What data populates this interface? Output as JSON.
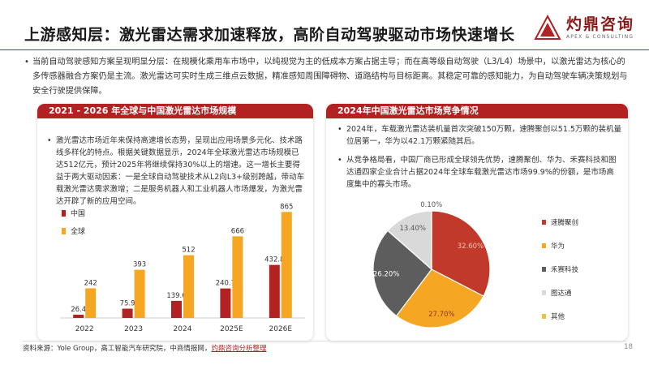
{
  "header": {
    "title": "上游感知层：激光雷达需求加速释放，高阶自动驾驶驱动市场快速增长",
    "logo_cn": "灼鼎咨询",
    "logo_en": "APEX & CONSULTING"
  },
  "intro": "当前自动驾驶感知方案呈现明显分层：在规模化乘用车市场中，以纯视觉为主的低成本方案占据主导；而在高等级自动驾驶（L3/L4）场景中，以激光雷达为核心的多传感器融合方案仍是主流。激光雷达可实时生成三维点云数据，精准感知周围障碍物、道路结构与目标距离。其稳定可靠的感知能力，为自动驾驶车辆决策规划与安全行驶提供保障。",
  "left_panel": {
    "title": "2021 - 2026 年全球与中国激光雷达市场规模",
    "paragraph": "激光雷达市场近年来保持高速增长态势，呈现出应用场景多元化、技术路线多样化的特点。根据关键数据显示，2024年全球激光雷达市场规模已达512亿元，预计2025年将继续保持30%以上的增速。这一增长主要得益于两大驱动因素：一是全球自动驾驶技术从L2向L3+级别跨越，带动车载激光雷达需求激增；二是服务机器人和工业机器人市场爆发，为激光雷达开辟了新的应用空间。"
  },
  "right_panel": {
    "title": "2024年中国激光雷达市场竞争情况",
    "para1": "2024年，车载激光雷达装机量首次突破150万颗，速腾聚创以51.5万颗的装机量位居第一，华为以42.1万颗紧随其后。",
    "para2": "从竞争格局看，中国厂商已形成全球领先优势，速腾聚创、华为、禾赛科技和图达通四家企业合计占据2024年全球车载激光雷达市场99.9%的份额，是市场高度集中的寡头市场。"
  },
  "footer": {
    "source_prefix": "资料来源：Yole Group，高工智能汽车研究院，中商情报网，",
    "source_link": "灼鼎咨询分析整理",
    "page_number": "18"
  },
  "colors": {
    "china": "#b22222",
    "global": "#f5a623",
    "pie": [
      "#c0392b",
      "#f5a623",
      "#5d5d5d",
      "#d9d9d9",
      "#f0c040"
    ]
  },
  "chart_data": [
    {
      "type": "bar",
      "categories": [
        "2022",
        "2023",
        "2024",
        "2025E",
        "2026E"
      ],
      "series": [
        {
          "name": "中国",
          "values": [
            26.4,
            75.9,
            139.6,
            240.7,
            432.8
          ]
        },
        {
          "name": "全球",
          "values": [
            242,
            393,
            512,
            666,
            865
          ]
        }
      ],
      "value_labels": {
        "中国": [
          "26.4",
          "75.9",
          "139.6",
          "240.7",
          "432.8"
        ],
        "全球": [
          "242",
          "393",
          "512",
          "666",
          "865"
        ]
      },
      "ylim": [
        0,
        900
      ],
      "legend_position": "top-left",
      "grid": false
    },
    {
      "type": "pie",
      "labels": [
        "速腾聚创",
        "华为",
        "禾赛科技",
        "图达通",
        "其他"
      ],
      "values": [
        32.6,
        27.7,
        26.2,
        13.4,
        0.1
      ],
      "value_labels": [
        "32.60%",
        "27.70%",
        "26.20%",
        "13.40%",
        "0.10%"
      ],
      "legend_position": "right"
    }
  ]
}
